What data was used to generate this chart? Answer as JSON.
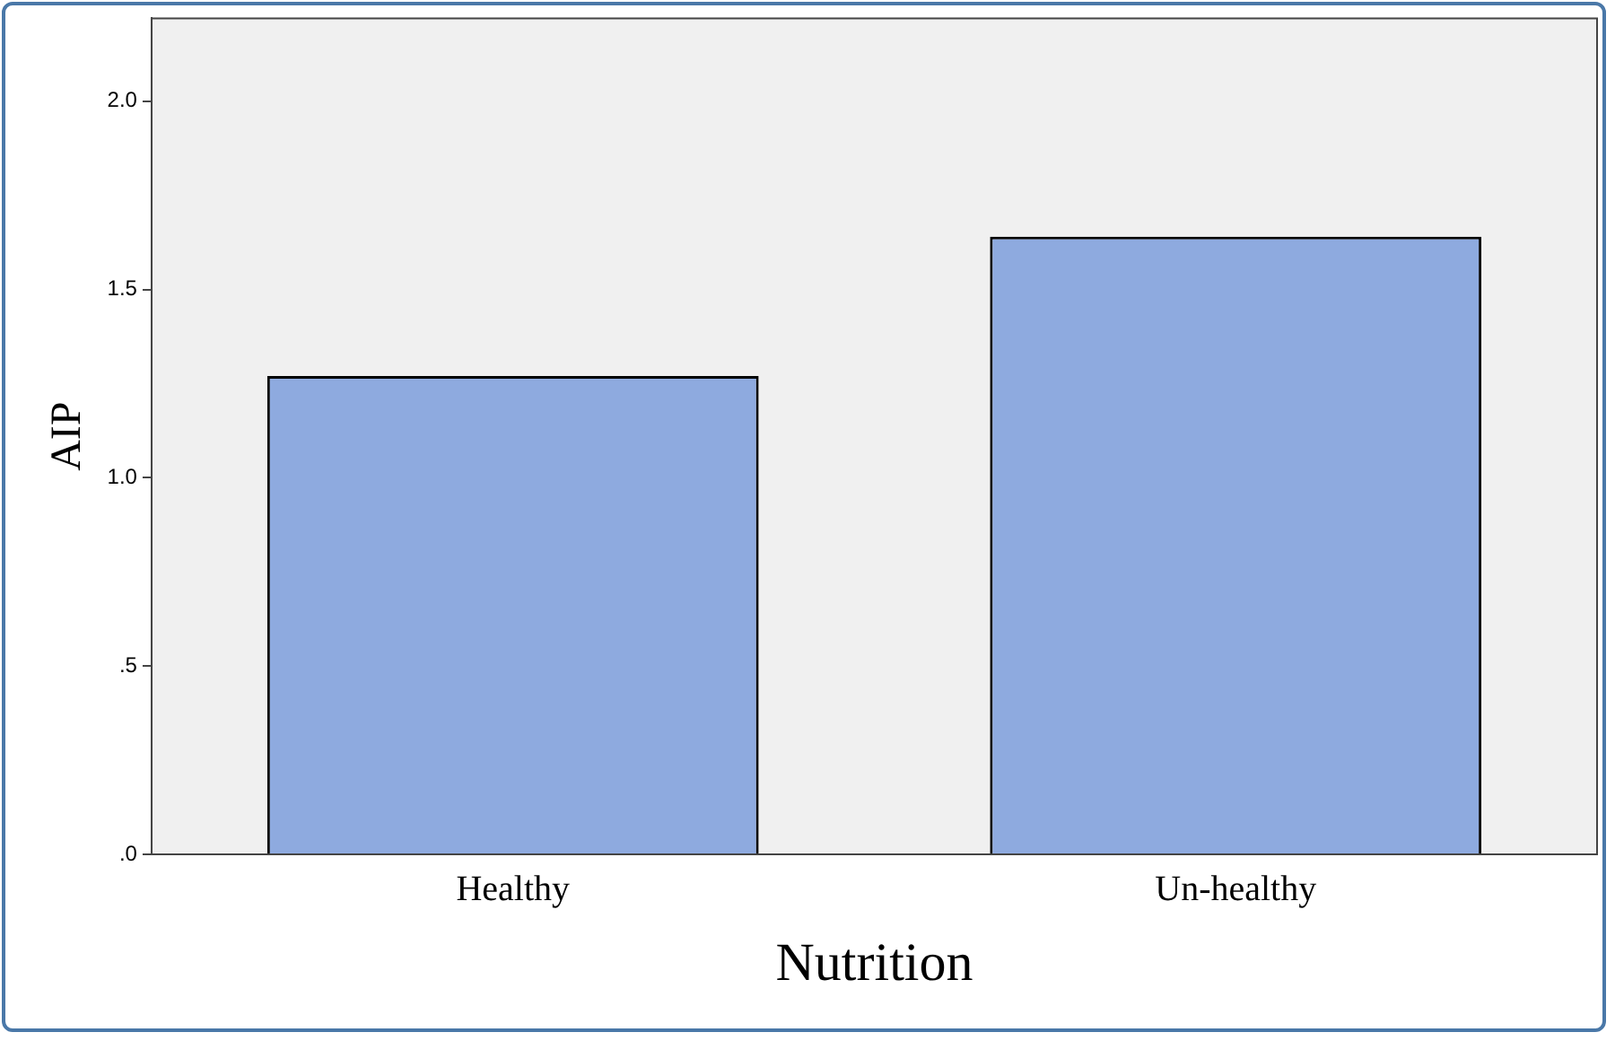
{
  "chart_data": {
    "type": "bar",
    "xlabel": "Nutrition",
    "ylabel": "AIP",
    "categories": [
      "Healthy",
      "Un-healthy"
    ],
    "values": [
      1.27,
      1.64
    ],
    "color": "#8eaadf",
    "ylim": [
      0,
      2.22
    ],
    "yticks": [
      {
        "value": 0,
        "label": ".0"
      },
      {
        "value": 0.5,
        "label": ".5"
      },
      {
        "value": 1,
        "label": "1.0"
      },
      {
        "value": 1.5,
        "label": "1.5"
      },
      {
        "value": 2,
        "label": "2.0"
      }
    ],
    "grid": false,
    "legend": false
  }
}
